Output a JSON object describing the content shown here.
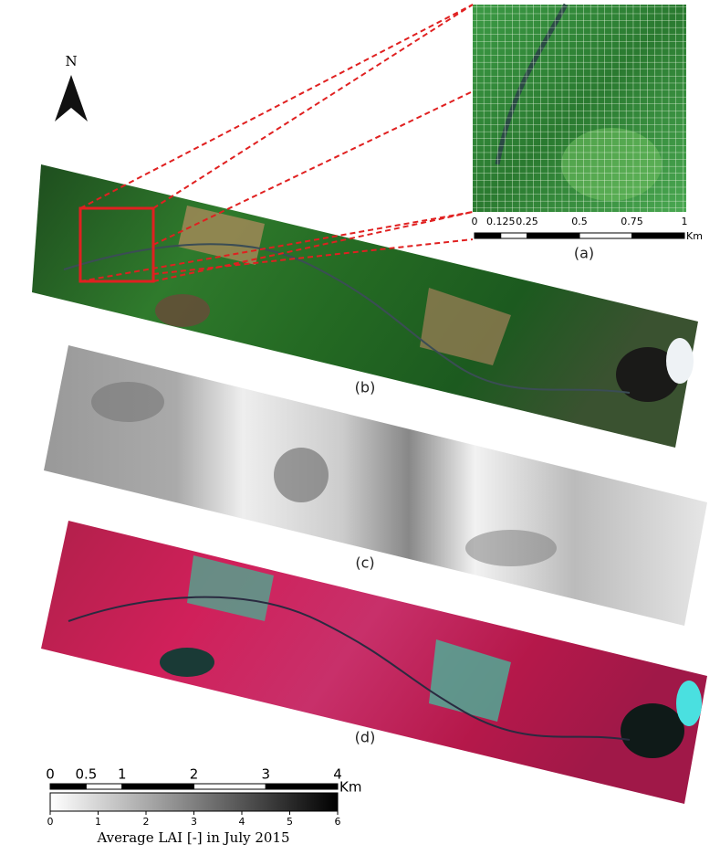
{
  "north": "N",
  "panels": {
    "a": "(a)",
    "b": "(b)",
    "c": "(c)",
    "d": "(d)"
  },
  "inset_scale": {
    "ticks": [
      0,
      0.125,
      0.25,
      0.5,
      0.75,
      1
    ],
    "unit": "Km"
  },
  "main_scale": {
    "ticks": [
      0,
      0.5,
      1,
      2,
      3,
      4
    ],
    "unit": "Km"
  },
  "colorbar": {
    "range": [
      0,
      6
    ],
    "ticks": [
      0,
      1,
      2,
      3,
      4,
      5,
      6
    ],
    "title": "Average LAI [-] in July 2015"
  }
}
